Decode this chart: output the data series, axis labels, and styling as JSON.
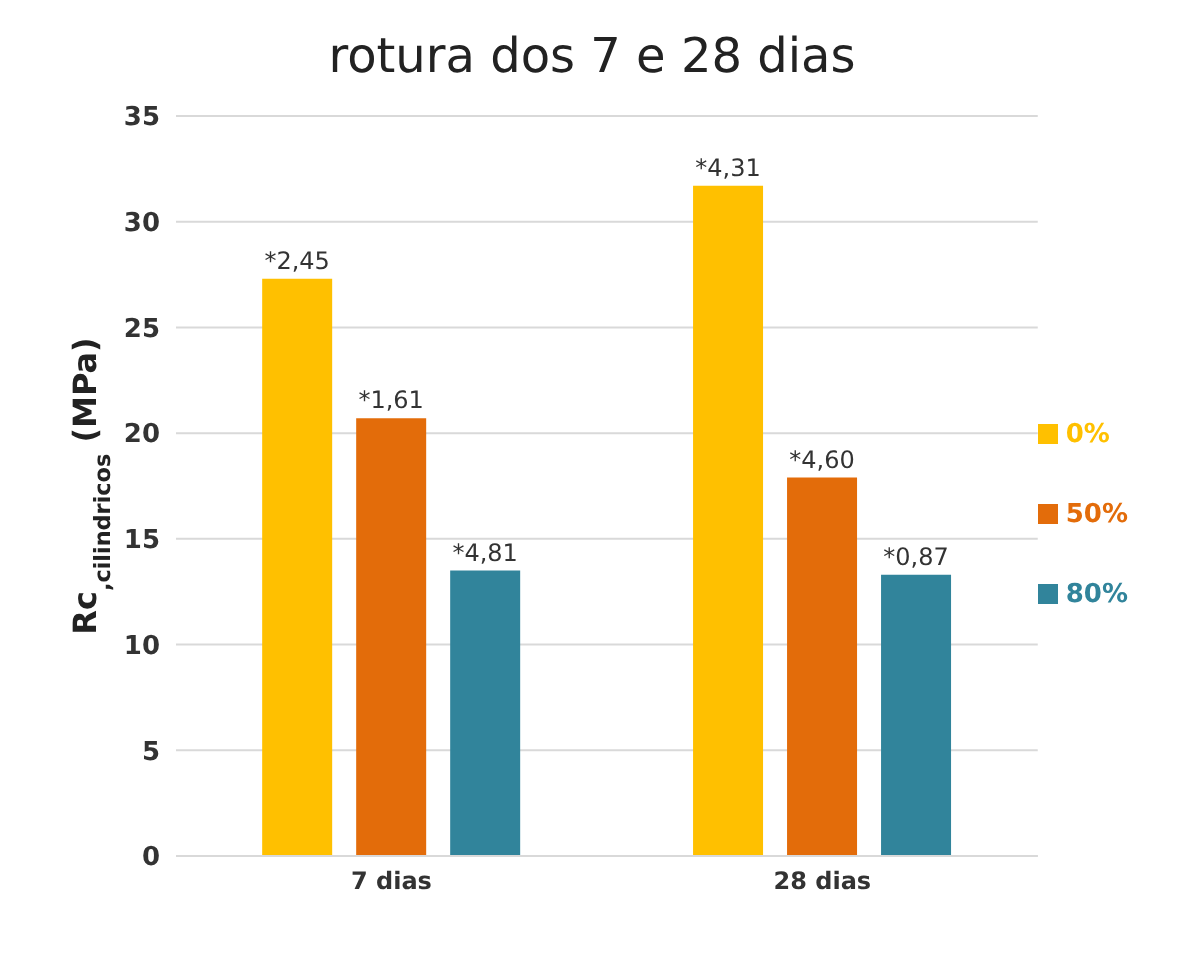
{
  "chart_data": {
    "type": "bar",
    "title": "rotura dos 7 e 28 dias",
    "ylabel": "Rc$_{,cilindricos}$ (MPa)",
    "categories": [
      "7 dias",
      "28 dias"
    ],
    "series": [
      {
        "name": "0%",
        "color": "#ffc000",
        "values": [
          27.3,
          31.7
        ]
      },
      {
        "name": "50%",
        "color": "#e36c0a",
        "values": [
          20.7,
          17.9
        ]
      },
      {
        "name": "80%",
        "color": "#31849b",
        "values": [
          13.5,
          13.3
        ]
      }
    ],
    "annotations": [
      "*2,45",
      "*4,31",
      "*1,61",
      "*4,60",
      "*4,81",
      "*0,87"
    ],
    "ylim": [
      0,
      35
    ],
    "yticks": [
      0,
      5,
      10,
      15,
      20,
      25,
      30,
      35
    ],
    "grid": "y",
    "legend": "right"
  }
}
